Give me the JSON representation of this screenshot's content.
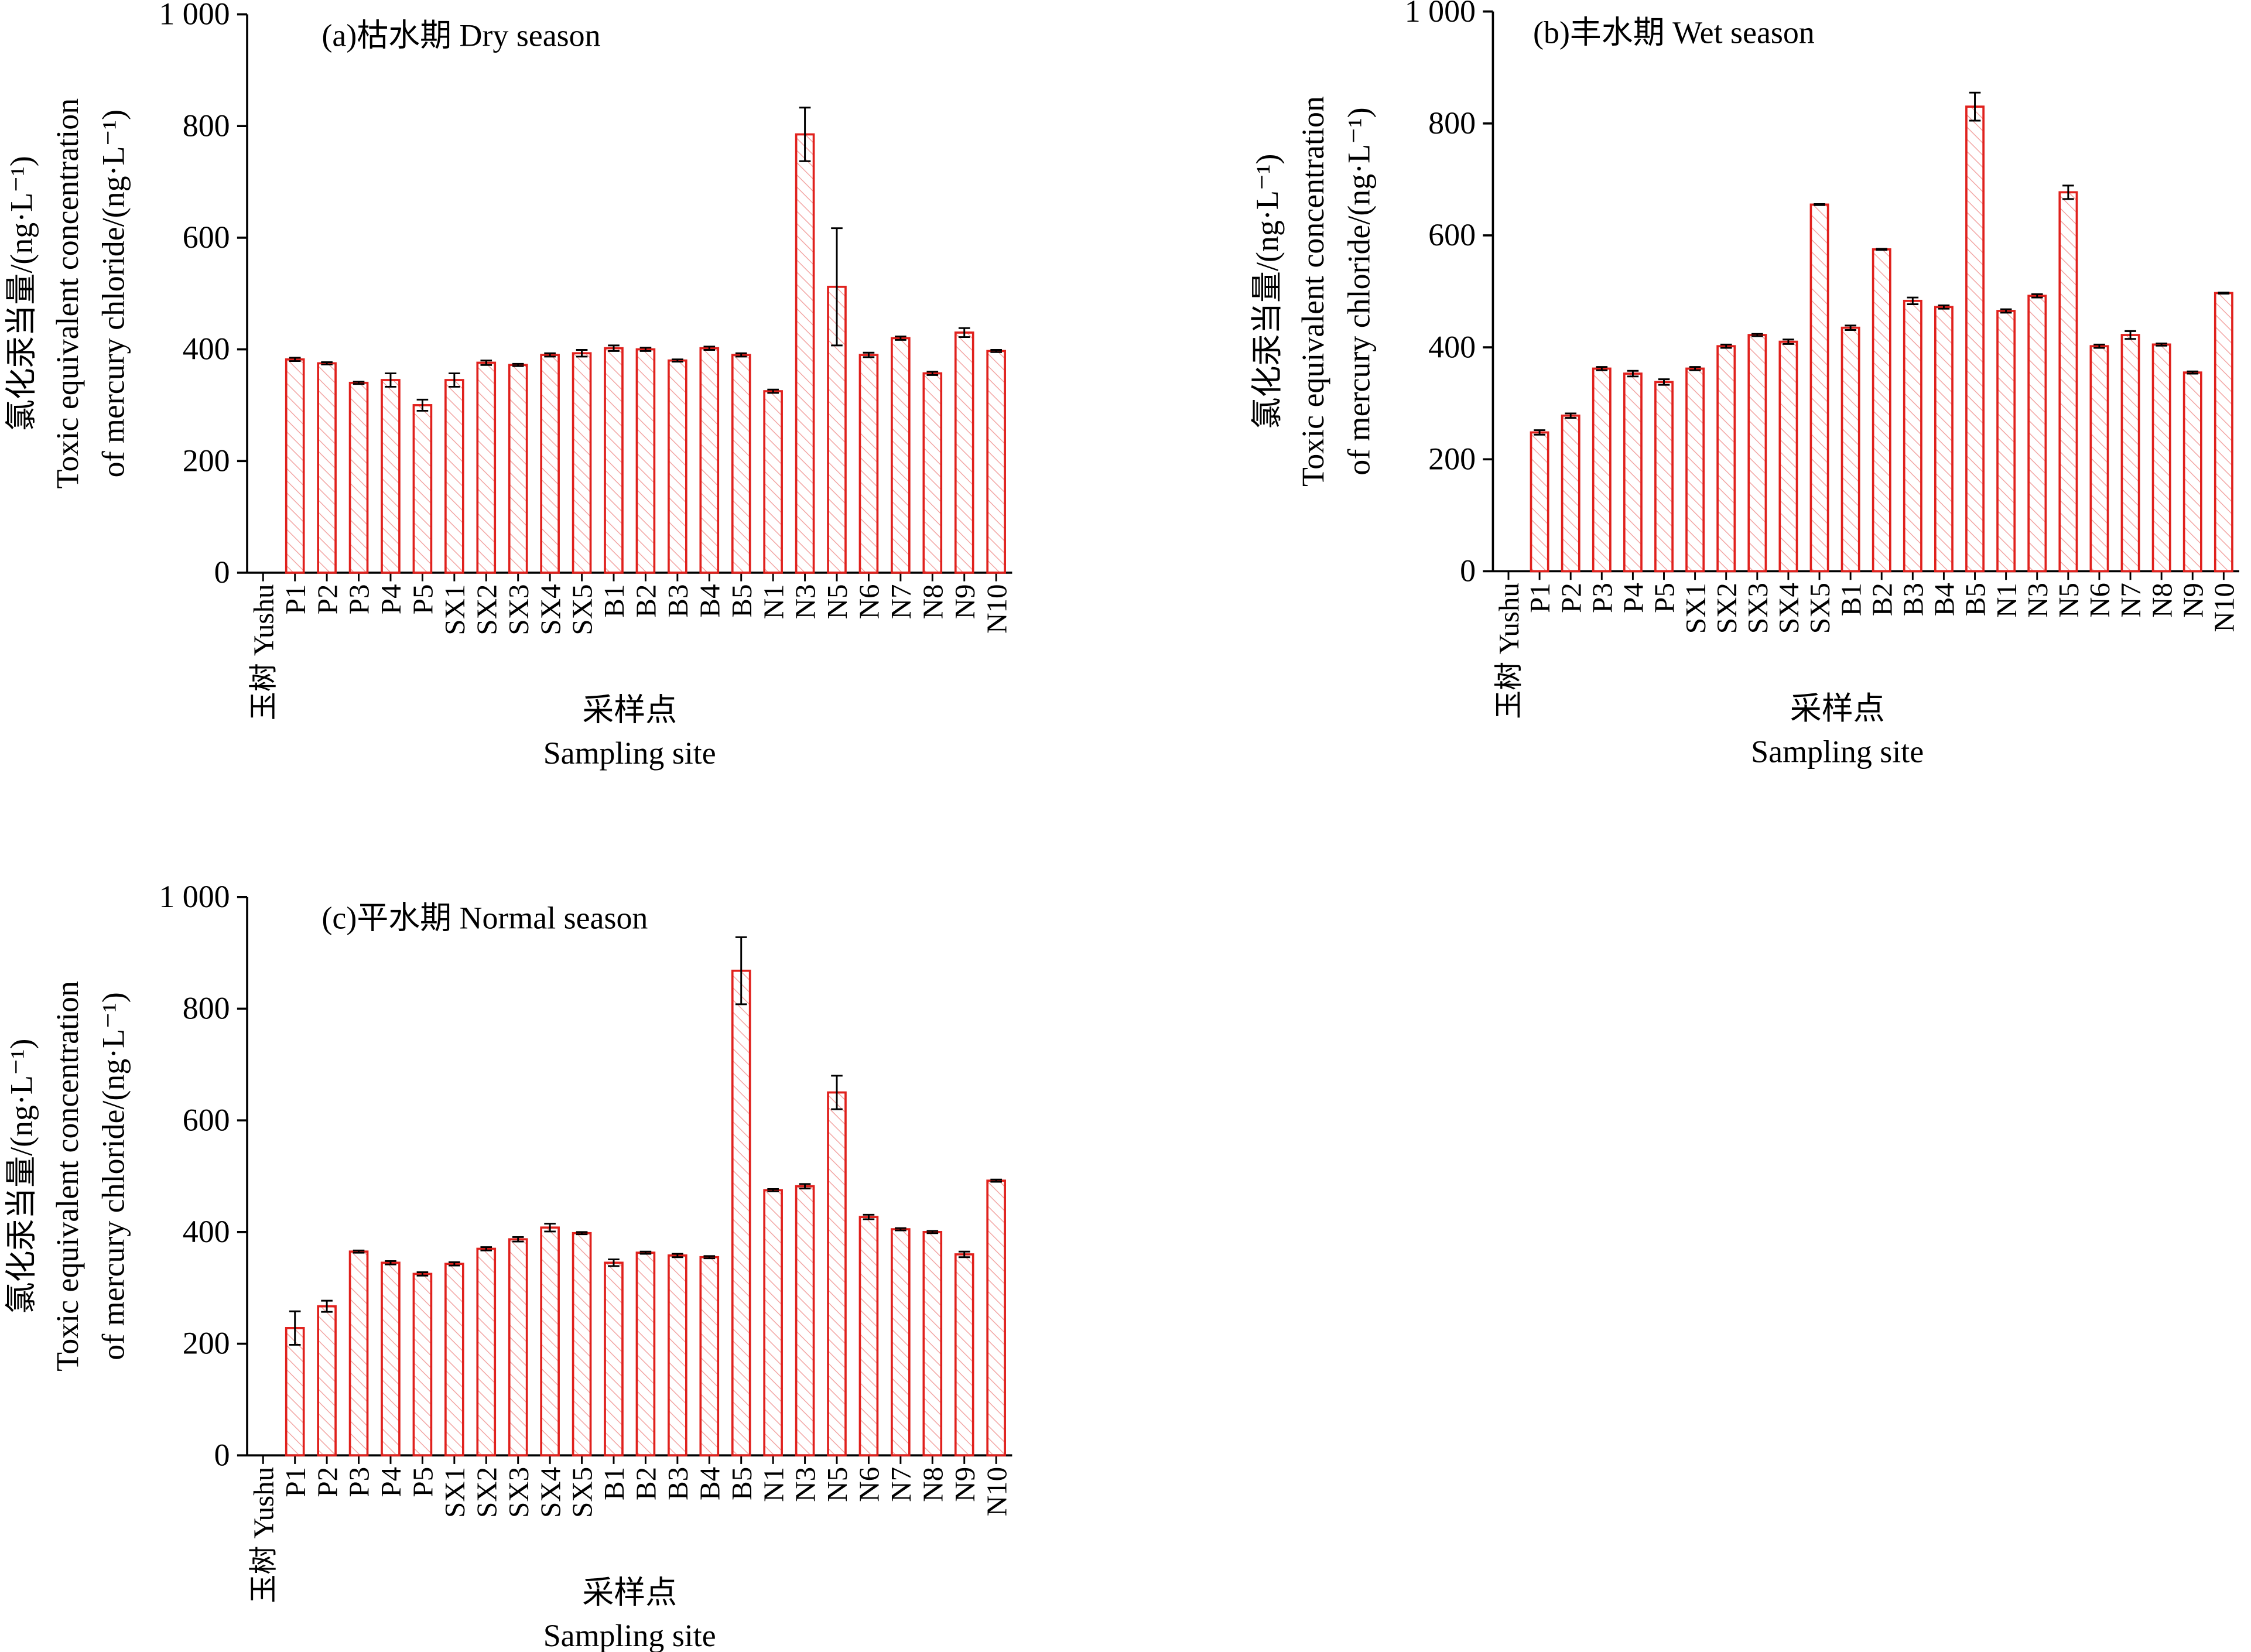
{
  "chart_data": [
    {
      "type": "bar",
      "title": "(a)枯水期 Dry season",
      "ylabel": [
        "氯化汞当量/(ng·L⁻¹)",
        "Toxic equivalent concentration",
        "of mercury chloride/(ng·L⁻¹)"
      ],
      "xlabel": [
        "采样点",
        "Sampling site"
      ],
      "categories": [
        "玉树 Yushu",
        "P1",
        "P2",
        "P3",
        "P4",
        "P5",
        "SX1",
        "SX2",
        "SX3",
        "SX4",
        "SX5",
        "B1",
        "B2",
        "B3",
        "B4",
        "B5",
        "N1",
        "N3",
        "N5",
        "N6",
        "N7",
        "N8",
        "N9",
        "N10"
      ],
      "values": [
        null,
        382,
        375,
        340,
        345,
        300,
        345,
        376,
        372,
        390,
        393,
        402,
        400,
        380,
        402,
        390,
        325,
        785,
        512,
        390,
        420,
        357,
        430,
        397
      ],
      "errors": [
        null,
        3,
        2,
        2,
        12,
        10,
        12,
        4,
        2,
        3,
        6,
        5,
        3,
        2,
        3,
        3,
        3,
        48,
        105,
        4,
        3,
        3,
        8,
        2
      ],
      "color": "#e0211d",
      "ylim": [
        0,
        1000
      ],
      "yticks": [
        0,
        200,
        400,
        600,
        800,
        {
          "value": 1000,
          "label": "1 000"
        }
      ]
    },
    {
      "type": "bar",
      "title": "(b)丰水期 Wet season",
      "ylabel": [
        "氯化汞当量/(ng·L⁻¹)",
        "Toxic equivalent concentration",
        "of mercury chloride/(ng·L⁻¹)"
      ],
      "xlabel": [
        "采样点",
        "Sampling site"
      ],
      "categories": [
        "玉树 Yushu",
        "P1",
        "P2",
        "P3",
        "P4",
        "P5",
        "SX1",
        "SX2",
        "SX3",
        "SX4",
        "SX5",
        "B1",
        "B2",
        "B3",
        "B4",
        "B5",
        "N1",
        "N3",
        "N5",
        "N6",
        "N7",
        "N8",
        "N9",
        "N10"
      ],
      "values": [
        null,
        248,
        278,
        362,
        353,
        338,
        362,
        402,
        422,
        410,
        655,
        435,
        575,
        483,
        472,
        830,
        465,
        492,
        677,
        402,
        422,
        405,
        355,
        497
      ],
      "errors": [
        null,
        4,
        4,
        3,
        5,
        5,
        3,
        3,
        2,
        4,
        1,
        4,
        1,
        6,
        3,
        25,
        3,
        3,
        12,
        3,
        7,
        2,
        2,
        1
      ],
      "color": "#e0211d",
      "ylim": [
        0,
        1000
      ],
      "yticks": [
        0,
        200,
        400,
        600,
        800,
        {
          "value": 1000,
          "label": "1 000"
        }
      ]
    },
    {
      "type": "bar",
      "title": "(c)平水期 Normal season",
      "ylabel": [
        "氯化汞当量/(ng·L⁻¹)",
        "Toxic equivalent concentration",
        "of mercury chloride/(ng·L⁻¹)"
      ],
      "xlabel": [
        "采样点",
        "Sampling site"
      ],
      "categories": [
        "玉树 Yushu",
        "P1",
        "P2",
        "P3",
        "P4",
        "P5",
        "SX1",
        "SX2",
        "SX3",
        "SX4",
        "SX5",
        "B1",
        "B2",
        "B3",
        "B4",
        "B5",
        "N1",
        "N3",
        "N5",
        "N6",
        "N7",
        "N8",
        "N9",
        "N10"
      ],
      "values": [
        null,
        228,
        267,
        365,
        345,
        325,
        343,
        370,
        387,
        408,
        398,
        345,
        363,
        358,
        355,
        868,
        475,
        482,
        650,
        427,
        405,
        400,
        360,
        492
      ],
      "errors": [
        null,
        30,
        10,
        2,
        3,
        3,
        3,
        3,
        4,
        7,
        2,
        6,
        2,
        3,
        2,
        60,
        2,
        4,
        30,
        4,
        2,
        2,
        5,
        2
      ],
      "color": "#e0211d",
      "ylim": [
        0,
        1000
      ],
      "yticks": [
        0,
        200,
        400,
        600,
        800,
        {
          "value": 1000,
          "label": "1 000"
        }
      ]
    }
  ]
}
